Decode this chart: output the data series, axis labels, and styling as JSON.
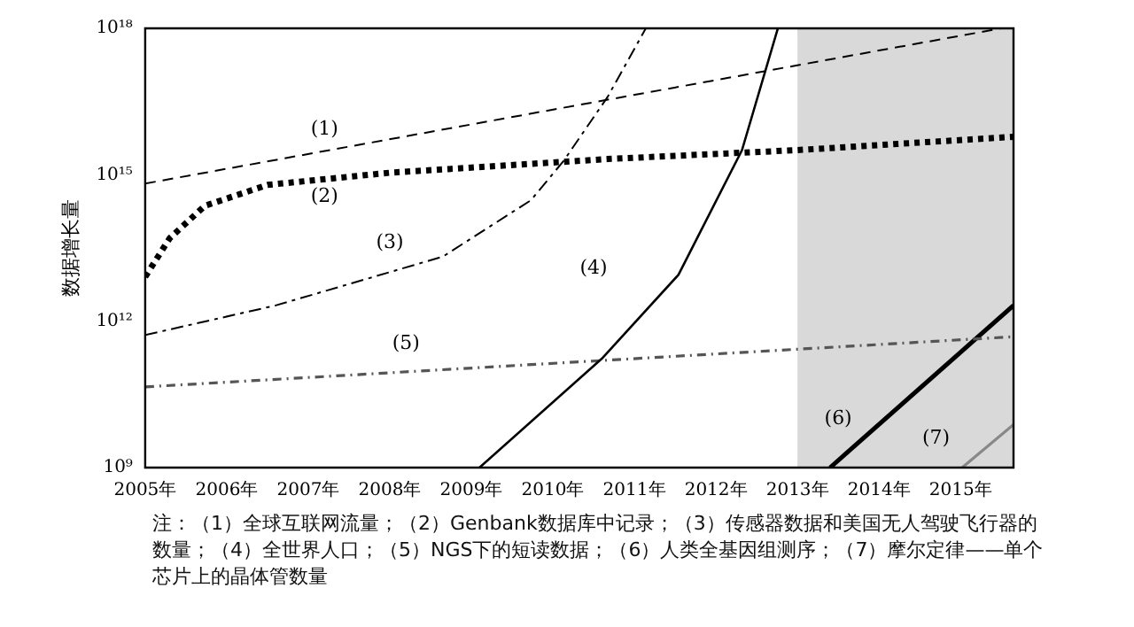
{
  "chart_data": {
    "type": "line",
    "ylabel": "数据增长量",
    "log": true,
    "grid": false,
    "legend": false,
    "marker": "none",
    "xlim": [
      2005,
      2015.65
    ],
    "xticks": [
      {
        "value": 2005,
        "label": "2005年"
      },
      {
        "value": 2006,
        "label": "2006年"
      },
      {
        "value": 2007,
        "label": "2007年"
      },
      {
        "value": 2008,
        "label": "2008年"
      },
      {
        "value": 2009,
        "label": "2009年"
      },
      {
        "value": 2010,
        "label": "2010年"
      },
      {
        "value": 2011,
        "label": "2011年"
      },
      {
        "value": 2012,
        "label": "2012年"
      },
      {
        "value": 2013,
        "label": "2013年"
      },
      {
        "value": 2014,
        "label": "2014年"
      },
      {
        "value": 2015,
        "label": "2015年"
      }
    ],
    "ylim": [
      1000000000.0,
      1e+18
    ],
    "yticks": [
      {
        "value": 1000000000.0,
        "label": "10⁹"
      },
      {
        "value": 1000000000000.0,
        "label": "10¹²"
      },
      {
        "value": 1000000000000000.0,
        "label": "10¹⁵"
      },
      {
        "value": 1e+18,
        "label": "10¹⁸"
      }
    ],
    "bands": [
      {
        "axis": "x",
        "from": 2013,
        "to": 2015.65,
        "color": "#d9d9d9"
      }
    ],
    "series": [
      {
        "name": "(1)",
        "color": "#000000",
        "line_style": "dashed",
        "x": [
          2005,
          2015.5
        ],
        "values": [
          660000000000000.0,
          1e+18
        ]
      },
      {
        "name": "(2)",
        "color": "#000000",
        "line_style": "dotted",
        "x": [
          2005,
          2005.3,
          2005.73,
          2006.5,
          2008,
          2010.67,
          2013,
          2015.65
        ],
        "values": [
          8100000000000.0,
          50000000000000.0,
          230000000000000.0,
          620000000000000.0,
          1100000000000000.0,
          2100000000000000.0,
          3200000000000000.0,
          6000000000000000.0
        ]
      },
      {
        "name": "(3)",
        "color": "#000000",
        "line_style": "dashed",
        "x": [
          2005,
          2006.6,
          2008.65,
          2009.73,
          2010.13,
          2010.67,
          2011.14
        ],
        "values": [
          520000000000.0,
          2100000000000.0,
          21000000000000.0,
          300000000000000.0,
          1900000000000000.0,
          3.9e+16,
          1e+18
        ]
      },
      {
        "name": "(4)",
        "color": "#000000",
        "line_style": "solid",
        "x": [
          2009.1,
          2010.6,
          2011.54,
          2012.32,
          2012.76
        ],
        "values": [
          1000000000.0,
          170000000000.0,
          8900000000000.0,
          3200000000000000.0,
          1e+18
        ]
      },
      {
        "name": "(5)",
        "color": "#555555",
        "line_style": "dashed",
        "x": [
          2005,
          2015.65
        ],
        "values": [
          45000000000.0,
          480000000000.0
        ]
      },
      {
        "name": "(6)",
        "color": "#000000",
        "line_style": "solid",
        "x": [
          2013.4,
          2015.65
        ],
        "values": [
          1000000000.0,
          2100000000000.0
        ]
      },
      {
        "name": "(7)",
        "color": "#888888",
        "line_style": "solid",
        "x": [
          2015.02,
          2015.65
        ],
        "values": [
          1000000000.0,
          7600000000.0
        ]
      }
    ],
    "annotations": [
      "注：（1）全球互联网流量；（2）Genbank数据库中记录；（3）传感器数据和美国无人驾驶飞行器的数量；（4）全世界人口；（5）NGS下的短读数据；（6）人类全基因组测序；（7）摩尔定律——单个芯片上的晶体管数量"
    ]
  }
}
